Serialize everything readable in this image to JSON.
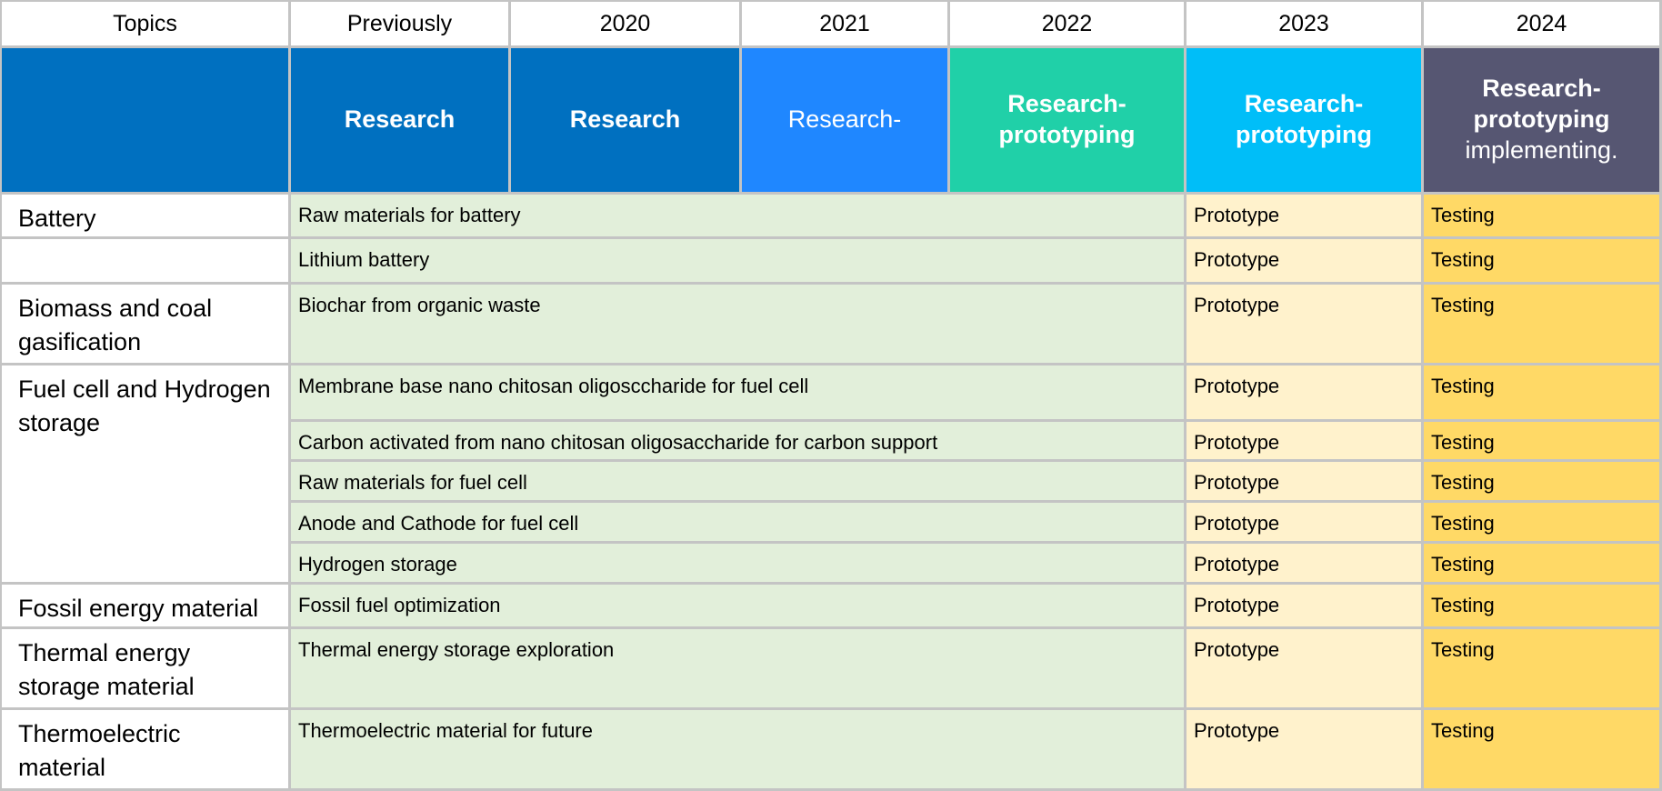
{
  "header": {
    "columns": [
      "Topics",
      "Previously",
      "2020",
      "2021",
      "2022",
      "2023",
      "2024"
    ]
  },
  "phases": [
    null,
    {
      "lines": [
        "Research"
      ],
      "bold": [
        true
      ]
    },
    {
      "lines": [
        "Research"
      ],
      "bold": [
        true
      ]
    },
    {
      "lines": [
        "Research-"
      ],
      "bold": [
        false
      ]
    },
    {
      "lines": [
        "Research-",
        "prototyping"
      ],
      "bold": [
        true,
        true
      ]
    },
    {
      "lines": [
        "Research-",
        "prototyping"
      ],
      "bold": [
        true,
        true
      ]
    },
    {
      "lines": [
        "Research-",
        "prototyping",
        "implementing."
      ],
      "bold": [
        true,
        true,
        false
      ]
    }
  ],
  "phase_colors": [
    "#0070c0",
    "#0070c0",
    "#0070c0",
    "#1f87ff",
    "#20d0a8",
    "#00bef8",
    "#565672"
  ],
  "groups": [
    {
      "topic": "Battery",
      "items": [
        {
          "name": "Raw materials for battery",
          "status_2023": "Prototype",
          "status_2024": "Testing"
        }
      ]
    },
    {
      "topic": null,
      "items": [
        {
          "name": "Lithium battery",
          "status_2023": "Prototype",
          "status_2024": "Testing"
        }
      ]
    },
    {
      "topic": "Biomass and coal gasification",
      "items": [
        {
          "name": "Biochar from organic waste",
          "status_2023": "Prototype",
          "status_2024": "Testing"
        }
      ]
    },
    {
      "topic": "Fuel cell and Hydrogen storage",
      "items": [
        {
          "name": "Membrane base nano chitosan oligosccharide for fuel cell",
          "status_2023": "Prototype",
          "status_2024": "Testing"
        },
        {
          "name": "Carbon activated from nano chitosan oligosaccharide for carbon support",
          "status_2023": "Prototype",
          "status_2024": "Testing"
        },
        {
          "name": "Raw materials for fuel cell",
          "status_2023": "Prototype",
          "status_2024": "Testing"
        },
        {
          "name": "Anode and Cathode for fuel cell",
          "status_2023": "Prototype",
          "status_2024": "Testing"
        },
        {
          "name": "Hydrogen storage",
          "status_2023": "Prototype",
          "status_2024": "Testing"
        }
      ]
    },
    {
      "topic": "Fossil energy material",
      "items": [
        {
          "name": "Fossil fuel optimization",
          "status_2023": "Prototype",
          "status_2024": "Testing"
        }
      ]
    },
    {
      "topic": "Thermal energy storage material",
      "items": [
        {
          "name": "Thermal energy storage exploration",
          "status_2023": "Prototype",
          "status_2024": "Testing"
        }
      ]
    },
    {
      "topic": "Thermoelectric material",
      "items": [
        {
          "name": "Thermoelectric material for future",
          "status_2023": "Prototype",
          "status_2024": "Testing"
        }
      ]
    }
  ]
}
